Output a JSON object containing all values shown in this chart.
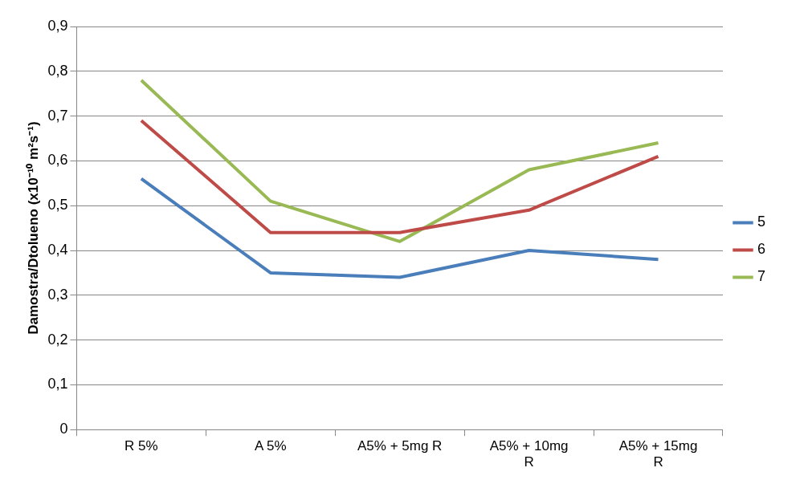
{
  "chart_data": {
    "type": "line",
    "ylabel": "Damostra/Dtolueno (x10⁻¹⁰ m²s⁻¹)",
    "categories": [
      "R 5%",
      "A 5%",
      "A5% + 5mg R",
      "A5% + 10mg R",
      "A5% + 15mg R"
    ],
    "series": [
      {
        "name": "5",
        "color": "#4a7ebb",
        "values": [
          0.56,
          0.35,
          0.34,
          0.4,
          0.38
        ]
      },
      {
        "name": "6",
        "color": "#be4b48",
        "values": [
          0.69,
          0.44,
          0.44,
          0.49,
          0.61
        ]
      },
      {
        "name": "7",
        "color": "#98b954",
        "values": [
          0.78,
          0.51,
          0.42,
          0.58,
          0.64
        ]
      }
    ],
    "ylim": [
      0,
      0.9
    ],
    "yticks": [
      0,
      {
        "value": 0.1,
        "label": "0,1"
      },
      {
        "value": 0.2,
        "label": "0,2"
      },
      {
        "value": 0.3,
        "label": "0,3"
      },
      {
        "value": 0.4,
        "label": "0,4"
      },
      {
        "value": 0.5,
        "label": "0,5"
      },
      {
        "value": 0.6,
        "label": "0,6"
      },
      {
        "value": 0.7,
        "label": "0,7"
      },
      {
        "value": 0.8,
        "label": "0,8"
      },
      {
        "value": 0.9,
        "label": "0,9"
      }
    ],
    "grid": "y",
    "legend": "right",
    "marker": "none",
    "line_style": "solid"
  }
}
